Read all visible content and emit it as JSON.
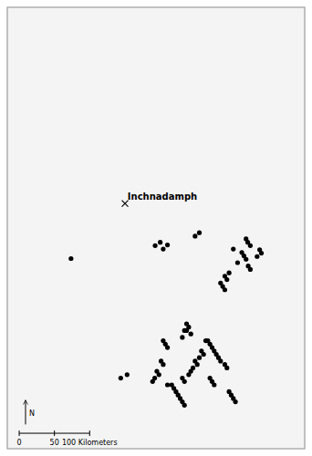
{
  "chart_data": {
    "type": "scatter",
    "color": "#000000",
    "x": [
      -6.2,
      -4.22,
      -4.1,
      -4.03,
      -3.93,
      -3.18,
      -3.28,
      -2.08,
      -2.04,
      -1.98,
      -2.38,
      -2.18,
      -2.13,
      -2.08,
      -2.28,
      -2.03,
      -1.98,
      -2.48,
      -2.58,
      -2.53,
      -2.68,
      -2.63,
      -2.58,
      -1.76,
      -1.72,
      -1.82,
      -3.48,
      -3.43,
      -3.53,
      -3.38,
      -3.58,
      -4.03,
      -3.98,
      -3.93,
      -2.98,
      -2.93,
      -2.88,
      -2.83,
      -2.78,
      -2.73,
      -2.68,
      -2.58,
      -2.53,
      -3.13,
      -3.08,
      -3.18,
      -3.28,
      -3.23,
      -3.33,
      -3.38,
      -3.43,
      -3.58,
      -3.53,
      -4.08,
      -4.03,
      -4.18,
      -4.13,
      -4.23,
      -4.28,
      -4.88,
      -5.03,
      -3.83,
      -3.78,
      -3.73,
      -3.68,
      -3.63,
      -3.58,
      -3.53,
      -2.93,
      -2.88,
      -2.83,
      -2.48,
      -2.43,
      -2.38,
      -2.33,
      -3.93,
      -3.03,
      -3.48
    ],
    "values": [
      57.3,
      57.49,
      57.54,
      57.44,
      57.5,
      57.68,
      57.63,
      57.59,
      57.54,
      57.49,
      57.44,
      57.39,
      57.34,
      57.29,
      57.24,
      57.19,
      57.14,
      57.09,
      57.04,
      56.99,
      56.94,
      56.89,
      56.84,
      57.43,
      57.38,
      57.33,
      56.34,
      56.29,
      56.24,
      56.19,
      56.14,
      56.09,
      56.04,
      55.99,
      56.09,
      56.04,
      55.99,
      55.94,
      55.89,
      55.84,
      55.79,
      55.74,
      55.69,
      55.94,
      55.89,
      55.84,
      55.79,
      55.74,
      55.69,
      55.64,
      55.59,
      55.54,
      55.49,
      55.79,
      55.74,
      55.64,
      55.59,
      55.54,
      55.49,
      55.59,
      55.54,
      55.44,
      55.39,
      55.34,
      55.29,
      55.24,
      55.19,
      55.14,
      55.54,
      55.49,
      55.44,
      55.34,
      55.29,
      55.24,
      55.19,
      55.44,
      56.09,
      56.24
    ],
    "xlim": [
      -7.7,
      -0.7
    ],
    "ylim": [
      54.5,
      61.0
    ],
    "tick_labels": false,
    "annotations": [
      {
        "text": "Inchnadamph",
        "x": -4.87,
        "y": 58.17
      },
      {
        "marker": "x",
        "x": -4.93,
        "y": 58.11
      }
    ],
    "scale_bar": {
      "labels": [
        "0",
        "50",
        "100 Kilometers"
      ]
    },
    "north_arrow": "N"
  }
}
